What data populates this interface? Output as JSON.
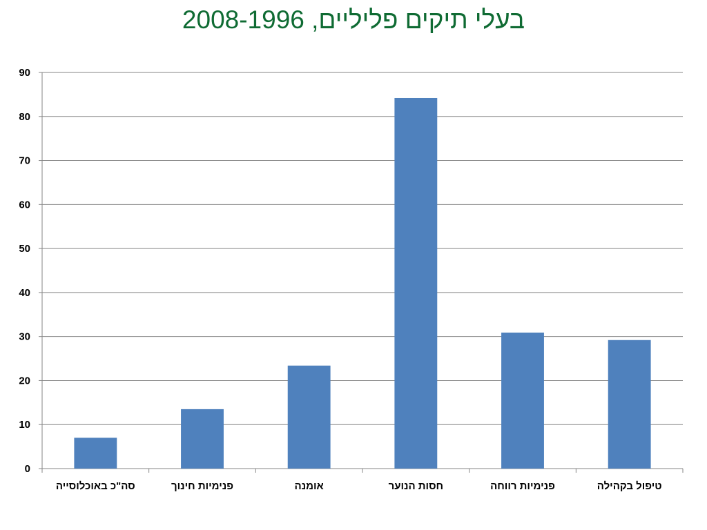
{
  "chart_data": {
    "type": "bar",
    "title": "בעלי תיקים פליליים, 2008-1996",
    "categories": [
      "סה\"כ באוכלוסייה",
      "פנימיות חינוך",
      "אומנה",
      "חסות הנוער",
      "פנימיות רווחה",
      "טיפול בקהילה"
    ],
    "values": [
      7,
      13.5,
      23.4,
      84.2,
      30.9,
      29.2
    ],
    "ylim": [
      0,
      90
    ],
    "yticks": [
      0,
      10,
      20,
      30,
      40,
      50,
      60,
      70,
      80,
      90
    ],
    "xlabel": "",
    "ylabel": "",
    "grid": true,
    "legend": "none",
    "colors": {
      "bar": "#4f81bd",
      "grid": "#868686",
      "axis": "#868686",
      "title": "#0f6b33"
    }
  }
}
